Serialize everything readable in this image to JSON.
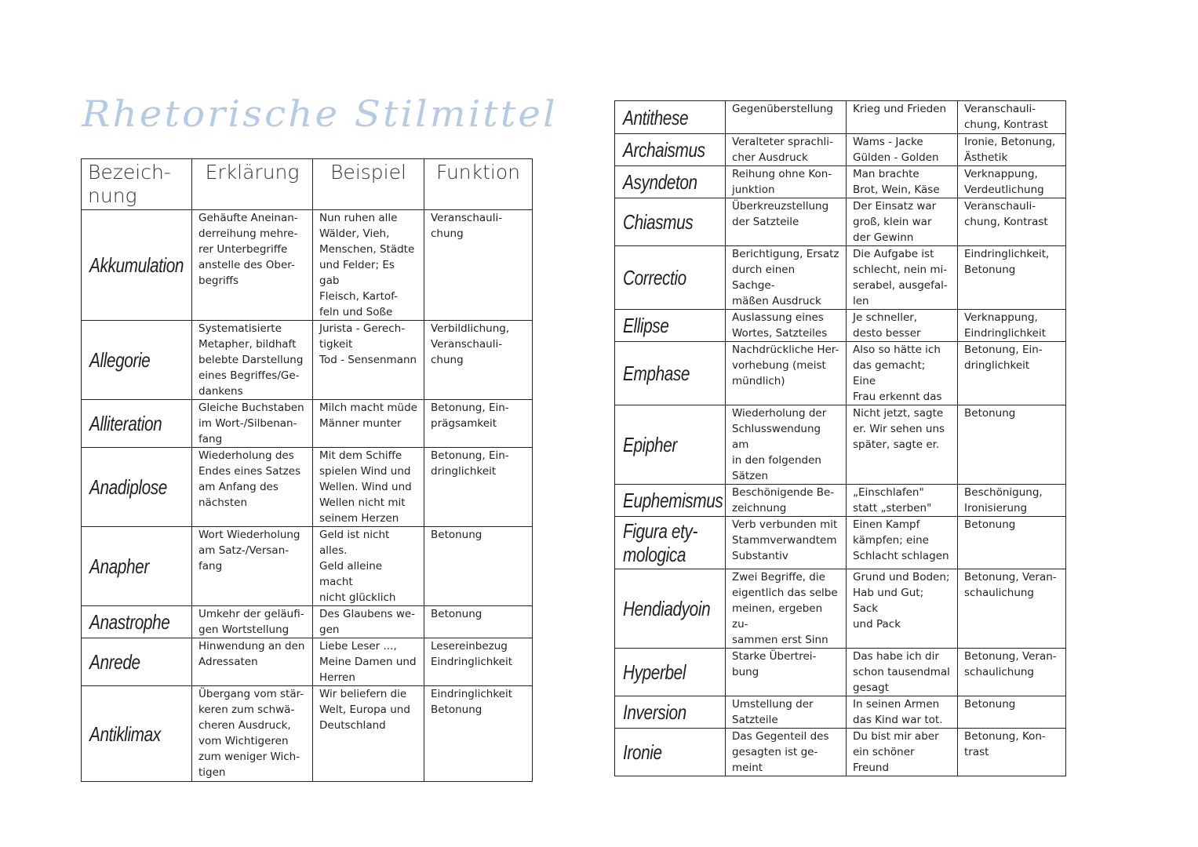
{
  "title": "Rhetorische Stilmittel",
  "headers": [
    "Bezeich-\nnung",
    "Erklärung",
    "Beispiel",
    "Funktion"
  ],
  "left_rows": [
    {
      "name": "Akkumulation",
      "explanation": "Gehäufte Aneinan-\nderreihung mehre-\nrer Unterbegriffe\nanstelle des Ober-\nbegriffs",
      "example": "Nun ruhen alle\nWälder, Vieh,\nMenschen, Städte\nund Felder; Es gab\nFleisch, Kartof-\nfeln und Soße",
      "function": "Veranschauli-\nchung"
    },
    {
      "name": "Allegorie",
      "explanation": "Systematisierte\nMetapher, bildhaft\nbelebte Darstellung\neines Begriffes/Ge-\ndankens",
      "example": "Jurista - Gerech-\ntigkeit\nTod - Sensenmann",
      "function": "Verbildlichung,\nVeranschauli-\nchung"
    },
    {
      "name": "Alliteration",
      "explanation": "Gleiche Buchstaben\nim Wort-/Silbenan-\nfang",
      "example": "Milch macht müde\nMänner munter",
      "function": "Betonung, Ein-\nprägsamkeit"
    },
    {
      "name": "Anadiplose",
      "explanation": "Wiederholung des\nEndes eines Satzes\nam Anfang des\nnächsten",
      "example": "Mit dem Schiffe\nspielen Wind und\nWellen. Wind und\nWellen nicht mit\nseinem Herzen",
      "function": "Betonung, Ein-\ndringlichkeit"
    },
    {
      "name": "Anapher",
      "explanation": "Wort Wiederholung\nam Satz-/Versan-\nfang",
      "example": "Geld ist nicht alles.\nGeld alleine macht\nnicht glücklich",
      "function": "Betonung"
    },
    {
      "name": "Anastrophe",
      "explanation": "Umkehr der geläufi-\ngen Wortstellung",
      "example": "Des Glaubens we-\ngen",
      "function": "Betonung"
    },
    {
      "name": "Anrede",
      "explanation": "Hinwendung an den\nAdressaten",
      "example": "Liebe Leser ...,\nMeine Damen und\nHerren",
      "function": "Lesereinbezug\nEindringlichkeit"
    },
    {
      "name": "Antiklimax",
      "explanation": "Übergang vom stär-\nkeren zum schwä-\ncheren Ausdruck,\nvom Wichtigeren\nzum weniger Wich-\ntigen",
      "example": "Wir beliefern die\nWelt, Europa und\nDeutschland",
      "function": "Eindringlichkeit\nBetonung"
    }
  ],
  "right_rows": [
    {
      "name": "Antithese",
      "explanation": "Gegenüberstellung",
      "example": "Krieg und Frieden",
      "function": "Veranschauli-\nchung, Kontrast"
    },
    {
      "name": "Archaismus",
      "explanation": "Veralteter sprachli-\ncher Ausdruck",
      "example": "Wams - Jacke\nGülden - Golden",
      "function": "Ironie, Betonung,\nÄsthetik"
    },
    {
      "name": "Asyndeton",
      "explanation": "Reihung ohne Kon-\njunktion",
      "example": "Man brachte\nBrot, Wein, Käse",
      "function": "Verknappung,\nVerdeutlichung"
    },
    {
      "name": "Chiasmus",
      "explanation": "Überkreuzstellung\nder Satzteile",
      "example": "Der Einsatz war\ngroß, klein war\nder Gewinn",
      "function": "Veranschauli-\nchung, Kontrast"
    },
    {
      "name": "Correctio",
      "explanation": "Berichtigung, Ersatz\ndurch einen Sachge-\nmäßen Ausdruck",
      "example": "Die Aufgabe ist\nschlecht, nein mi-\nserabel, ausgefal-\nlen",
      "function": "Eindringlichkeit,\nBetonung"
    },
    {
      "name": "Ellipse",
      "explanation": "Auslassung eines\nWortes, Satzteiles",
      "example": "Je schneller,\ndesto besser",
      "function": "Verknappung,\nEindringlichkeit"
    },
    {
      "name": "Emphase",
      "explanation": "Nachdrückliche Her-\nvorhebung (meist\nmündlich)",
      "example": "Also so hätte ich\ndas gemacht; Eine\nFrau erkennt das",
      "function": "Betonung, Ein-\ndringlichkeit"
    },
    {
      "name": "Epipher",
      "explanation": "Wiederholung der\nSchlusswendung am\nin den folgenden\nSätzen",
      "example": "Nicht jetzt, sagte\ner. Wir sehen uns\nspäter, sagte er.",
      "function": "Betonung"
    },
    {
      "name": "Euphemismus",
      "explanation": "Beschönigende Be-\nzeichnung",
      "example": "„Einschlafen\"\nstatt „sterben\"",
      "function": "Beschönigung,\nIronisierung"
    },
    {
      "name": "Figura ety-\nmologica",
      "explanation": "Verb verbunden mit\nStammverwandtem\nSubstantiv",
      "example": "Einen Kampf\nkämpfen; eine\nSchlacht schlagen",
      "function": "Betonung"
    },
    {
      "name": "Hendiadyoin",
      "explanation": "Zwei Begriffe, die\neigentlich das selbe\nmeinen, ergeben zu-\nsammen erst Sinn",
      "example": "Grund und Boden;\nHab und Gut; Sack\nund Pack",
      "function": "Betonung, Veran-\nschaulichung"
    },
    {
      "name": "Hyperbel",
      "explanation": "Starke Übertrei-\nbung",
      "example": "Das habe ich dir\nschon tausendmal\ngesagt",
      "function": "Betonung, Veran-\nschaulichung"
    },
    {
      "name": "Inversion",
      "explanation": "Umstellung der\nSatzteile",
      "example": "In seinen Armen\ndas Kind war tot.",
      "function": "Betonung"
    },
    {
      "name": "Ironie",
      "explanation": "Das Gegenteil des\ngesagten ist ge-\nmeint",
      "example": "Du bist mir aber\nein schöner\nFreund",
      "function": "Betonung, Kon-\ntrast"
    }
  ]
}
